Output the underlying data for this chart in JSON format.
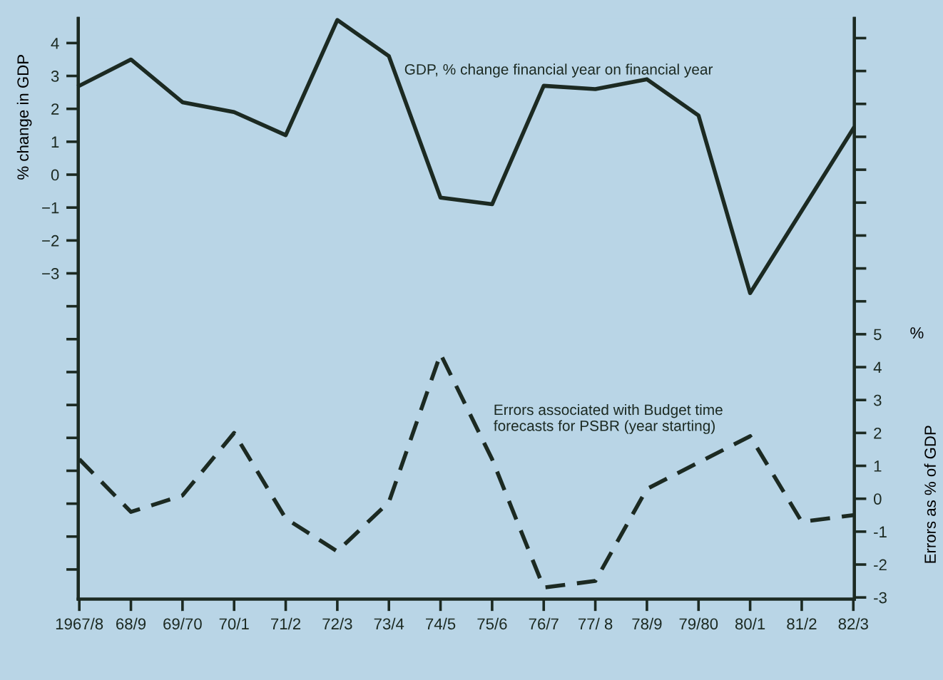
{
  "chart_data": {
    "type": "line",
    "categories": [
      "1967/8",
      "68/9",
      "69/70",
      "70/1",
      "71/2",
      "72/3",
      "73/4",
      "74/5",
      "75/6",
      "76/7",
      "77/ 8",
      "78/9",
      "79/80",
      "80/1",
      "81/2",
      "82/3"
    ],
    "series": [
      {
        "name": "GDP, % change financial year on financial year",
        "color": "#1c2a22",
        "line_style": "solid",
        "values": [
          2.7,
          3.5,
          2.2,
          1.9,
          1.2,
          4.7,
          3.6,
          -0.7,
          -0.9,
          2.7,
          2.6,
          2.9,
          1.8,
          -3.6,
          -1.1,
          1.4
        ]
      },
      {
        "name": "Errors associated with Budget time\nforecasts for PSBR (year starting)",
        "color": "#1c2a22",
        "line_style": "dashed",
        "axis": "y2",
        "values": [
          1.2,
          -0.4,
          0.1,
          2.0,
          -0.6,
          -1.6,
          -0.1,
          4.4,
          1.2,
          -2.7,
          -2.5,
          0.3,
          1.1,
          1.9,
          -0.7,
          -0.5
        ]
      }
    ],
    "ylabel": "% change in GDP",
    "y2label": "Errors as % of GDP",
    "ylim": [
      -12.9,
      4.75
    ],
    "yticks": [
      {
        "value": -12,
        "label": null
      },
      {
        "value": -11,
        "label": null
      },
      {
        "value": -10,
        "label": null
      },
      {
        "value": -9,
        "label": null
      },
      {
        "value": -8,
        "label": null
      },
      {
        "value": -7,
        "label": null
      },
      {
        "value": -6,
        "label": null
      },
      {
        "value": -5,
        "label": null
      },
      {
        "value": -4,
        "label": null
      },
      {
        "value": -3,
        "label": "−3"
      },
      {
        "value": -2,
        "label": "−2"
      },
      {
        "value": -1,
        "label": "−1"
      },
      0,
      1,
      2,
      3,
      4
    ],
    "y2lim": [
      -3.05,
      14.6
    ],
    "y2ticks": [
      {
        "value": -3,
        "label": "-3"
      },
      {
        "value": -2,
        "label": "-2"
      },
      {
        "value": -1,
        "label": "-1"
      },
      0,
      1,
      2,
      3,
      4,
      5,
      {
        "value": 6,
        "label": null
      },
      {
        "value": 7,
        "label": null
      },
      {
        "value": 8,
        "label": null
      },
      {
        "value": 9,
        "label": null
      },
      {
        "value": 10,
        "label": null
      },
      {
        "value": 11,
        "label": null
      },
      {
        "value": 12,
        "label": null
      },
      {
        "value": 13,
        "label": null
      },
      {
        "value": 14,
        "label": null
      }
    ],
    "annotations": [
      "%"
    ],
    "grid": false,
    "legend": false
  }
}
